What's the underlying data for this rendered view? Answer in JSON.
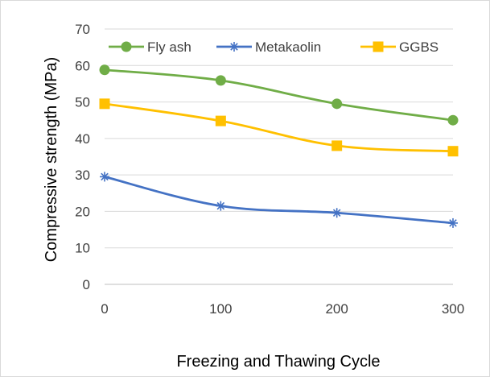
{
  "chart_data": {
    "type": "line",
    "title": "",
    "xlabel": "Freezing and Thawing Cycle",
    "ylabel": "Compressive strength (MPa)",
    "x": [
      0,
      100,
      200,
      300
    ],
    "x_tick_labels": [
      "0",
      "100",
      "200",
      "300"
    ],
    "ylim": [
      0,
      70
    ],
    "y_ticks": [
      0,
      10,
      20,
      30,
      40,
      50,
      60,
      70
    ],
    "y_tick_labels": [
      "0",
      "10",
      "20",
      "30",
      "40",
      "50",
      "60",
      "70"
    ],
    "grid": "horizontal",
    "legend_position": "top",
    "series": [
      {
        "name": "Fly ash",
        "values": [
          58.8,
          55.9,
          49.5,
          45.0
        ],
        "color": "#70ad47",
        "marker": "circle"
      },
      {
        "name": "Metakaolin",
        "values": [
          29.5,
          21.5,
          19.6,
          16.8
        ],
        "color": "#4472c4",
        "marker": "asterisk"
      },
      {
        "name": "GGBS",
        "values": [
          49.5,
          44.8,
          38.0,
          36.5
        ],
        "color": "#ffc000",
        "marker": "square"
      }
    ]
  }
}
